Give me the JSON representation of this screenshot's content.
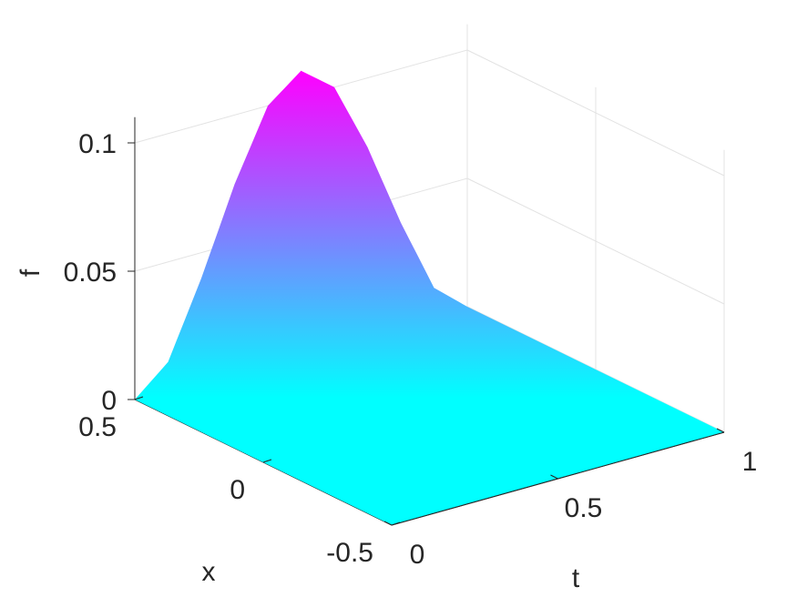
{
  "chart_data": {
    "type": "surface",
    "title": "",
    "xlabel": "t",
    "ylabel": "x",
    "zlabel": "f",
    "t_range": [
      0,
      1
    ],
    "x_range": [
      -0.5,
      0.5
    ],
    "f_range": [
      0,
      0.11
    ],
    "t_ticks": [
      "0",
      "0.5",
      "1"
    ],
    "x_ticks": [
      "-0.5",
      "0",
      "0.5"
    ],
    "f_ticks": [
      "0",
      "0.05",
      "0.1"
    ],
    "peak": {
      "t": 0.5,
      "x": 0.5,
      "f": 0.11
    },
    "colormap": {
      "low": "#00ffff",
      "high": "#ff00ff",
      "name": "cool"
    },
    "grid": true,
    "surface_profile": {
      "t": [
        0,
        0.1,
        0.2,
        0.3,
        0.4,
        0.5,
        0.6,
        0.7,
        0.8,
        0.9,
        1.0
      ],
      "f": [
        0,
        0.011,
        0.04,
        0.073,
        0.1,
        0.11,
        0.1,
        0.073,
        0.04,
        0.011,
        0
      ]
    }
  }
}
